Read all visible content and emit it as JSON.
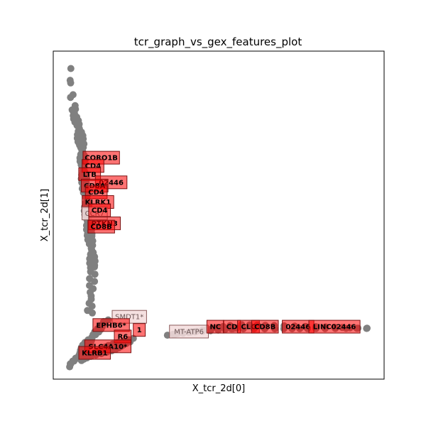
{
  "chart_data": {
    "type": "scatter",
    "title": "tcr_graph_vs_gex_features_plot",
    "xlabel": "X_tcr_2d[0]",
    "ylabel": "X_tcr_2d[1]",
    "xlim": [
      0,
      100
    ],
    "ylim": [
      0,
      100
    ],
    "ticks": "none",
    "grid": false,
    "colors": {
      "points": "#808080",
      "label_box": "#ff0000",
      "faint_box": "#f3dcdc",
      "text": "#000000"
    },
    "point_segments": [
      {
        "x0": 5.0,
        "y0": 94.0,
        "x1": 6.0,
        "y1": 83.0,
        "n": 6
      },
      {
        "x0": 6.0,
        "y0": 83.0,
        "x1": 8.5,
        "y1": 72.0,
        "n": 22
      },
      {
        "x0": 8.5,
        "y0": 72.0,
        "x1": 9.5,
        "y1": 58.0,
        "n": 26
      },
      {
        "x0": 9.5,
        "y0": 58.0,
        "x1": 11.0,
        "y1": 44.0,
        "n": 24
      },
      {
        "x0": 11.0,
        "y0": 44.0,
        "x1": 12.0,
        "y1": 34.0,
        "n": 16
      },
      {
        "x0": 12.0,
        "y0": 34.0,
        "x1": 11.0,
        "y1": 20.0,
        "n": 14
      },
      {
        "x0": 5.0,
        "y0": 4.0,
        "x1": 16.0,
        "y1": 18.0,
        "n": 34
      },
      {
        "x0": 8.0,
        "y0": 6.0,
        "x1": 24.0,
        "y1": 12.0,
        "n": 28
      },
      {
        "x0": 35.0,
        "y0": 13.5,
        "x1": 55.0,
        "y1": 16.0,
        "n": 22
      },
      {
        "x0": 55.0,
        "y0": 16.0,
        "x1": 95.5,
        "y1": 15.5,
        "n": 30
      }
    ],
    "labels": [
      {
        "text": "CORO1B",
        "x": 14.5,
        "y": 67.5,
        "style": "box"
      },
      {
        "text": "CD4",
        "x": 12.0,
        "y": 65.0,
        "style": "box"
      },
      {
        "text": "LTB",
        "x": 11.0,
        "y": 62.5,
        "style": "box"
      },
      {
        "text": "02446",
        "x": 17.5,
        "y": 60.0,
        "style": "box"
      },
      {
        "text": "CD8A",
        "x": 12.5,
        "y": 59.0,
        "style": "box"
      },
      {
        "text": "CD4",
        "x": 13.0,
        "y": 57.0,
        "style": "box"
      },
      {
        "text": "KLRK1",
        "x": 13.5,
        "y": 54.0,
        "style": "box"
      },
      {
        "text": "CCR7",
        "x": 12.5,
        "y": 50.5,
        "style": "faint"
      },
      {
        "text": "CD4",
        "x": 14.0,
        "y": 51.5,
        "style": "box"
      },
      {
        "text": "PTKN3",
        "x": 15.5,
        "y": 47.5,
        "style": "box"
      },
      {
        "text": "CD8B",
        "x": 14.5,
        "y": 46.5,
        "style": "box"
      },
      {
        "text": "SMDT1*",
        "x": 23.0,
        "y": 19.0,
        "style": "faint"
      },
      {
        "text": "EPHB6*",
        "x": 17.5,
        "y": 16.5,
        "style": "box"
      },
      {
        "text": "1",
        "x": 26.0,
        "y": 15.0,
        "style": "box"
      },
      {
        "text": "R6",
        "x": 21.0,
        "y": 13.0,
        "style": "box"
      },
      {
        "text": "SLC4A10*",
        "x": 16.5,
        "y": 10.0,
        "style": "box"
      },
      {
        "text": "KLRB1",
        "x": 12.5,
        "y": 8.0,
        "style": "box"
      },
      {
        "text": "MT-ATP6",
        "x": 41.0,
        "y": 14.5,
        "style": "faint"
      },
      {
        "text": "NC",
        "x": 49.0,
        "y": 16.0,
        "style": "box"
      },
      {
        "text": "CD",
        "x": 54.0,
        "y": 16.0,
        "style": "box"
      },
      {
        "text": "CLC",
        "x": 59.0,
        "y": 16.0,
        "style": "box"
      },
      {
        "text": "CD8B",
        "x": 64.0,
        "y": 16.0,
        "style": "box"
      },
      {
        "text": "02446",
        "x": 74.0,
        "y": 16.0,
        "style": "box"
      },
      {
        "text": "LINC02446",
        "x": 85.0,
        "y": 16.0,
        "style": "box"
      }
    ]
  }
}
